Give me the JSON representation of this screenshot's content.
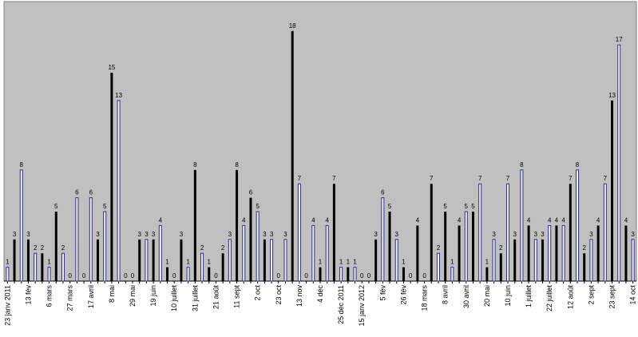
{
  "chart_data": {
    "type": "bar",
    "categories": [
      "23 janv 2011",
      null,
      null,
      "13 fév",
      null,
      null,
      "6 mars",
      null,
      null,
      "27 mars",
      null,
      null,
      "17 avril",
      null,
      null,
      "8 mai",
      null,
      null,
      "29 mai",
      null,
      null,
      "19 juin",
      null,
      null,
      "10 juillet",
      null,
      null,
      "31 juillet",
      null,
      null,
      "21 août",
      null,
      null,
      "11 sept",
      null,
      null,
      "2 oct",
      null,
      null,
      "23 oct",
      null,
      null,
      "13 nov",
      null,
      null,
      "4 déc",
      null,
      null,
      "25 déc 2011",
      null,
      null,
      "15 janv 2012",
      null,
      null,
      "5 fév",
      null,
      null,
      "26 fév",
      null,
      null,
      "18 mars",
      null,
      null,
      "8 avril",
      null,
      null,
      "30 avril",
      null,
      null,
      "20 mai",
      null,
      null,
      "10 juin",
      null,
      null,
      "1 juillet",
      null,
      null,
      "22 juillet",
      null,
      null,
      "12 août",
      null,
      null,
      "2 sept",
      null,
      null,
      "23 sept",
      null,
      null,
      "14 oct"
    ],
    "values": [
      1,
      3,
      8,
      3,
      2,
      2,
      1,
      5,
      2,
      0,
      6,
      0,
      6,
      3,
      5,
      15,
      13,
      0,
      0,
      3,
      3,
      3,
      4,
      1,
      0,
      3,
      1,
      8,
      2,
      1,
      0,
      2,
      3,
      8,
      4,
      6,
      5,
      3,
      3,
      0,
      3,
      18,
      7,
      0,
      4,
      1,
      4,
      7,
      1,
      1,
      1,
      0,
      0,
      3,
      6,
      5,
      3,
      1,
      0,
      4,
      0,
      7,
      2,
      5,
      1,
      4,
      5,
      5,
      7,
      1,
      3,
      2,
      7,
      3,
      8,
      4,
      3,
      3,
      4,
      4,
      4,
      7,
      8,
      2,
      3,
      4,
      7,
      13,
      17,
      4,
      3
    ],
    "colors": [
      "#2e2e86",
      "#000000"
    ],
    "ylim": [
      0,
      20
    ],
    "grid": false
  }
}
